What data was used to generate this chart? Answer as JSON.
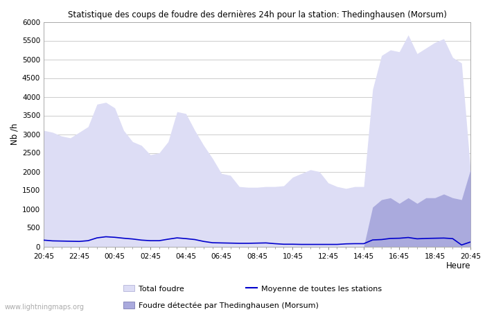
{
  "title": "Statistique des coups de foudre des dernières 24h pour la station: Thedinghausen (Morsum)",
  "xlabel": "Heure",
  "ylabel": "Nb /h",
  "xlim": [
    0,
    48
  ],
  "ylim": [
    0,
    6000
  ],
  "yticks": [
    0,
    500,
    1000,
    1500,
    2000,
    2500,
    3000,
    3500,
    4000,
    4500,
    5000,
    5500,
    6000
  ],
  "xtick_labels": [
    "20:45",
    "22:45",
    "00:45",
    "02:45",
    "04:45",
    "06:45",
    "08:45",
    "10:45",
    "12:45",
    "14:45",
    "16:45",
    "18:45",
    "20:45"
  ],
  "xtick_positions": [
    0,
    4,
    8,
    12,
    16,
    20,
    24,
    28,
    32,
    36,
    40,
    44,
    48
  ],
  "background_color": "#ffffff",
  "plot_bg_color": "#ffffff",
  "grid_color": "#cccccc",
  "total_foudre_color": "#ddddf5",
  "foudre_detected_color": "#aaaadd",
  "moyenne_color": "#0000cc",
  "watermark": "www.lightningmaps.org",
  "legend_total": "Total foudre",
  "legend_detected": "Foudre détectée par Thedinghausen (Morsum)",
  "legend_moyenne": "Moyenne de toutes les stations",
  "total_foudre_x": [
    0,
    1,
    2,
    3,
    4,
    5,
    6,
    7,
    8,
    9,
    10,
    11,
    12,
    13,
    14,
    15,
    16,
    17,
    18,
    19,
    20,
    21,
    22,
    23,
    24,
    25,
    26,
    27,
    28,
    29,
    30,
    31,
    32,
    33,
    34,
    35,
    36,
    37,
    38,
    39,
    40,
    41,
    42,
    43,
    44,
    45,
    46,
    47,
    48
  ],
  "total_foudre_y": [
    3100,
    3050,
    2950,
    2900,
    3050,
    3200,
    3800,
    3850,
    3700,
    3100,
    2800,
    2700,
    2450,
    2500,
    2800,
    3600,
    3550,
    3100,
    2700,
    2350,
    1950,
    1900,
    1600,
    1580,
    1580,
    1600,
    1600,
    1620,
    1850,
    1950,
    2050,
    2000,
    1700,
    1600,
    1550,
    1600,
    1600,
    4200,
    5100,
    5250,
    5200,
    5650,
    5150,
    5300,
    5450,
    5550,
    5050,
    4900,
    2050
  ],
  "foudre_detected_x": [
    0,
    1,
    2,
    3,
    4,
    5,
    6,
    7,
    8,
    9,
    10,
    11,
    12,
    13,
    14,
    15,
    16,
    17,
    18,
    19,
    20,
    21,
    22,
    23,
    24,
    25,
    26,
    27,
    28,
    29,
    30,
    31,
    32,
    33,
    34,
    35,
    36,
    37,
    38,
    39,
    40,
    41,
    42,
    43,
    44,
    45,
    46,
    47,
    48
  ],
  "foudre_detected_y": [
    0,
    0,
    0,
    0,
    0,
    0,
    0,
    0,
    0,
    0,
    0,
    0,
    0,
    0,
    0,
    0,
    0,
    0,
    0,
    0,
    0,
    0,
    0,
    0,
    0,
    0,
    0,
    0,
    0,
    0,
    0,
    0,
    0,
    0,
    0,
    0,
    0,
    1050,
    1250,
    1300,
    1150,
    1300,
    1150,
    1300,
    1300,
    1400,
    1300,
    1250,
    2050
  ],
  "moyenne_x": [
    0,
    1,
    2,
    3,
    4,
    5,
    6,
    7,
    8,
    9,
    10,
    11,
    12,
    13,
    14,
    15,
    16,
    17,
    18,
    19,
    20,
    21,
    22,
    23,
    24,
    25,
    26,
    27,
    28,
    29,
    30,
    31,
    32,
    33,
    34,
    35,
    36,
    37,
    38,
    39,
    40,
    41,
    42,
    43,
    44,
    45,
    46,
    47,
    48
  ],
  "moyenne_y": [
    170,
    150,
    145,
    140,
    135,
    155,
    230,
    260,
    245,
    220,
    200,
    170,
    155,
    155,
    195,
    230,
    210,
    185,
    135,
    100,
    95,
    90,
    85,
    85,
    90,
    95,
    75,
    60,
    60,
    55,
    55,
    55,
    55,
    55,
    70,
    75,
    75,
    175,
    185,
    215,
    220,
    240,
    205,
    215,
    220,
    225,
    210,
    40,
    120
  ]
}
